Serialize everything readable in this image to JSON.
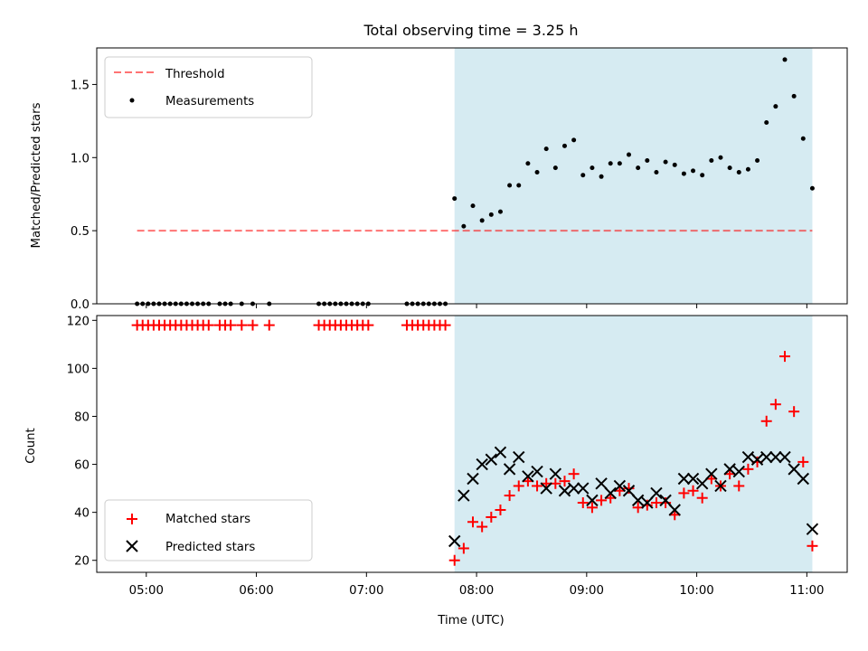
{
  "title": "Total observing time = 3.25 h",
  "chart_data": [
    {
      "type": "scatter",
      "ylabel": "Matched/Predicted stars",
      "ylim": [
        0,
        1.75
      ],
      "xlim": [
        "04:33",
        "11:22"
      ],
      "yticks": [
        "0.0",
        "0.5",
        "1.0",
        "1.5"
      ],
      "ytick_values": [
        0,
        0.5,
        1.0,
        1.5
      ],
      "shaded_window": [
        "07:48",
        "11:03"
      ],
      "legend": {
        "placement": "upper-left",
        "threshold_label": "Threshold",
        "measurements_label": "Measurements"
      },
      "threshold": 0.5,
      "threshold_x": [
        "04:55",
        "11:03"
      ],
      "series": [
        {
          "name": "Measurements",
          "x": [
            "04:55",
            "04:58",
            "05:01",
            "05:04",
            "05:07",
            "05:10",
            "05:13",
            "05:16",
            "05:19",
            "05:22",
            "05:25",
            "05:28",
            "05:31",
            "05:34",
            "05:40",
            "05:43",
            "05:46",
            "05:52",
            "05:58",
            "06:07",
            "06:34",
            "06:37",
            "06:40",
            "06:43",
            "06:46",
            "06:49",
            "06:52",
            "06:55",
            "06:58",
            "07:01",
            "07:22",
            "07:25",
            "07:28",
            "07:31",
            "07:34",
            "07:37",
            "07:40",
            "07:43",
            "07:48",
            "07:53",
            "07:58",
            "08:03",
            "08:08",
            "08:13",
            "08:18",
            "08:23",
            "08:28",
            "08:33",
            "08:38",
            "08:43",
            "08:48",
            "08:53",
            "08:58",
            "09:03",
            "09:08",
            "09:13",
            "09:18",
            "09:23",
            "09:28",
            "09:33",
            "09:38",
            "09:43",
            "09:48",
            "09:53",
            "09:58",
            "10:03",
            "10:08",
            "10:13",
            "10:18",
            "10:23",
            "10:28",
            "10:33",
            "10:38",
            "10:43",
            "10:48",
            "10:53",
            "10:58",
            "11:03"
          ],
          "y": [
            0,
            0,
            0,
            0,
            0,
            0,
            0,
            0,
            0,
            0,
            0,
            0,
            0,
            0,
            0,
            0,
            0,
            0,
            0,
            0,
            0,
            0,
            0,
            0,
            0,
            0,
            0,
            0,
            0,
            0,
            0,
            0,
            0,
            0,
            0,
            0,
            0,
            0,
            0.72,
            0.53,
            0.67,
            0.57,
            0.61,
            0.63,
            0.81,
            0.81,
            0.96,
            0.9,
            1.06,
            0.93,
            1.08,
            1.12,
            0.88,
            0.93,
            0.87,
            0.96,
            0.96,
            1.02,
            0.93,
            0.98,
            0.9,
            0.97,
            0.95,
            0.89,
            0.91,
            0.88,
            0.98,
            1.0,
            0.93,
            0.9,
            0.92,
            0.98,
            1.24,
            1.35,
            1.67,
            1.42,
            1.13,
            0.79
          ]
        }
      ]
    },
    {
      "type": "scatter",
      "xlabel": "Time (UTC)",
      "ylabel": "Count",
      "ylim": [
        15,
        122
      ],
      "xlim": [
        "04:33",
        "11:22"
      ],
      "xticks": [
        "05:00",
        "06:00",
        "07:00",
        "08:00",
        "09:00",
        "10:00",
        "11:00"
      ],
      "yticks": [
        "20",
        "40",
        "60",
        "80",
        "100",
        "120"
      ],
      "ytick_values": [
        20,
        40,
        60,
        80,
        100,
        120
      ],
      "shaded_window": [
        "07:48",
        "11:03"
      ],
      "legend": {
        "placement": "lower-left"
      },
      "series": [
        {
          "name": "Matched stars",
          "x": [
            "04:55",
            "04:58",
            "05:01",
            "05:04",
            "05:07",
            "05:10",
            "05:13",
            "05:16",
            "05:19",
            "05:22",
            "05:25",
            "05:28",
            "05:31",
            "05:34",
            "05:40",
            "05:43",
            "05:46",
            "05:52",
            "05:58",
            "06:07",
            "06:34",
            "06:37",
            "06:40",
            "06:43",
            "06:46",
            "06:49",
            "06:52",
            "06:55",
            "06:58",
            "07:01",
            "07:22",
            "07:25",
            "07:28",
            "07:31",
            "07:34",
            "07:37",
            "07:40",
            "07:43",
            "07:48",
            "07:53",
            "07:58",
            "08:03",
            "08:08",
            "08:13",
            "08:18",
            "08:23",
            "08:28",
            "08:33",
            "08:38",
            "08:43",
            "08:48",
            "08:53",
            "08:58",
            "09:03",
            "09:08",
            "09:13",
            "09:18",
            "09:23",
            "09:28",
            "09:33",
            "09:38",
            "09:43",
            "09:48",
            "09:53",
            "09:58",
            "10:03",
            "10:08",
            "10:13",
            "10:18",
            "10:23",
            "10:28",
            "10:33",
            "10:38",
            "10:43",
            "10:48",
            "10:53",
            "10:58",
            "11:03"
          ],
          "y": [
            118,
            118,
            118,
            118,
            118,
            118,
            118,
            118,
            118,
            118,
            118,
            118,
            118,
            118,
            118,
            118,
            118,
            118,
            118,
            118,
            118,
            118,
            118,
            118,
            118,
            118,
            118,
            118,
            118,
            118,
            118,
            118,
            118,
            118,
            118,
            118,
            118,
            118,
            20,
            25,
            36,
            34,
            38,
            41,
            47,
            51,
            53,
            51,
            52,
            52,
            53,
            56,
            44,
            42,
            45,
            46,
            49,
            50,
            42,
            43,
            44,
            44,
            39,
            48,
            49,
            46,
            54,
            51,
            56,
            51,
            58,
            61,
            78,
            85,
            105,
            82,
            61,
            26
          ]
        },
        {
          "name": "Predicted stars",
          "x": [
            "07:48",
            "07:53",
            "07:58",
            "08:03",
            "08:08",
            "08:13",
            "08:18",
            "08:23",
            "08:28",
            "08:33",
            "08:38",
            "08:43",
            "08:48",
            "08:53",
            "08:58",
            "09:03",
            "09:08",
            "09:13",
            "09:18",
            "09:23",
            "09:28",
            "09:33",
            "09:38",
            "09:43",
            "09:48",
            "09:53",
            "09:58",
            "10:03",
            "10:08",
            "10:13",
            "10:18",
            "10:23",
            "10:28",
            "10:33",
            "10:38",
            "10:43",
            "10:48",
            "10:53",
            "10:58",
            "11:03"
          ],
          "y": [
            28,
            47,
            54,
            60,
            62,
            65,
            58,
            63,
            55,
            57,
            50,
            56,
            49,
            50,
            50,
            45,
            52,
            48,
            51,
            49,
            45,
            44,
            48,
            45,
            41,
            54,
            54,
            52,
            56,
            51,
            58,
            57,
            63,
            62,
            63,
            63,
            63,
            58,
            54,
            33
          ]
        }
      ]
    }
  ]
}
